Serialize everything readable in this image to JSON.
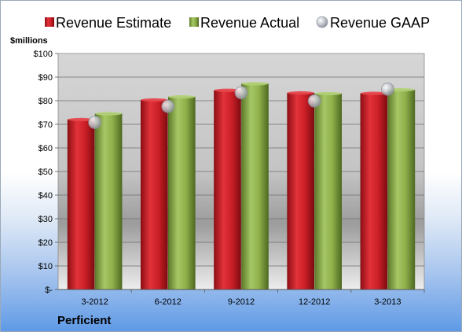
{
  "chart_data": {
    "type": "bar",
    "categories": [
      "3-2012",
      "6-2012",
      "9-2012",
      "12-2012",
      "3-2013"
    ],
    "series": [
      {
        "name": "Revenue Estimate",
        "values": [
          72,
          80.3,
          84.4,
          83.3,
          83.1
        ],
        "color": "#cc1f27",
        "kind": "bar"
      },
      {
        "name": "Revenue Actual",
        "values": [
          74.5,
          81.6,
          87.2,
          83.0,
          84.6
        ],
        "color": "#8fb04a",
        "kind": "bar"
      },
      {
        "name": "Revenue GAAP",
        "values": [
          70.8,
          77.6,
          83.4,
          79.9,
          84.9
        ],
        "color": "#c0c4cc",
        "kind": "marker"
      }
    ],
    "ylim": [
      0,
      100
    ],
    "yticks": [
      "$-",
      "$10",
      "$20",
      "$30",
      "$40",
      "$50",
      "$60",
      "$70",
      "$80",
      "$90",
      "$100"
    ],
    "ytick_step": 10,
    "grid": true,
    "legend_position": "top",
    "unit_label": "$millions",
    "company_label": "Perficient"
  }
}
